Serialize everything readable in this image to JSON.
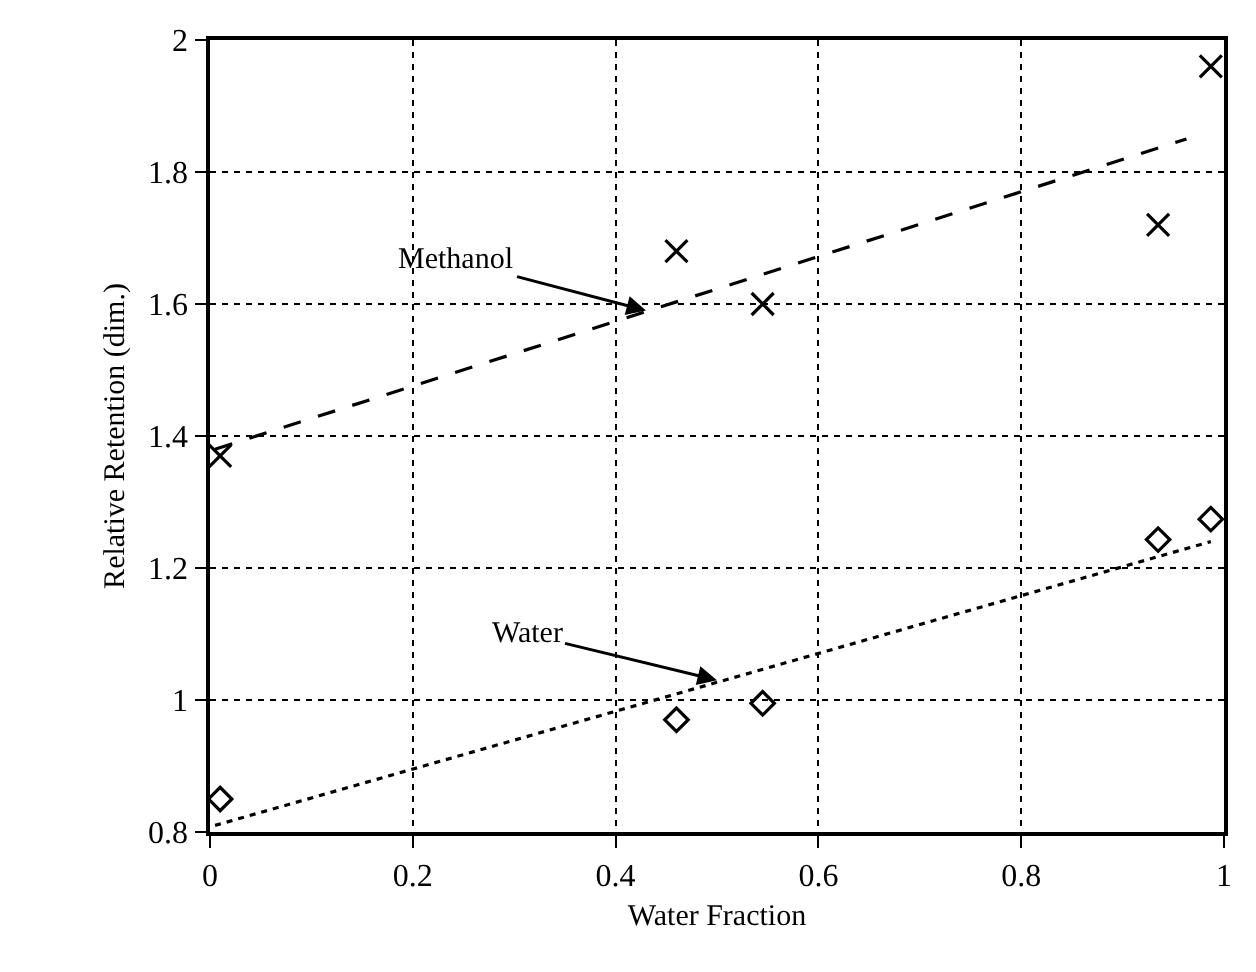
{
  "chart_data": {
    "type": "scatter",
    "xlabel": "Water Fraction",
    "ylabel": "Relative Retention (dim.)",
    "series": [
      {
        "color": "#000000",
        "marker": "cross",
        "x": [
          0.01,
          0.46,
          0.545,
          0.935,
          0.987
        ],
        "values": [
          1.37,
          1.68,
          1.6,
          1.72,
          1.96
        ]
      },
      {
        "color": "#000000",
        "marker": "diamond",
        "x": [
          0.01,
          0.46,
          0.545,
          0.935,
          0.987
        ],
        "values": [
          0.85,
          0.97,
          0.995,
          1.243,
          1.274
        ]
      },
      {
        "type": "line",
        "color": "#000000",
        "line_style": "dashed",
        "x": [
          0.005,
          0.963
        ],
        "values": [
          1.38,
          1.85
        ]
      },
      {
        "type": "line",
        "color": "#000000",
        "line_style": "dotted",
        "x": [
          0.005,
          0.987
        ],
        "values": [
          0.81,
          1.24
        ]
      }
    ],
    "annotations": [
      {
        "text": "Methanol",
        "x": 0.43,
        "y": 1.59
      },
      {
        "text": "Water",
        "x": 0.5,
        "y": 1.03
      }
    ],
    "xlim": [
      0,
      1
    ],
    "xticks": [
      0,
      0.2,
      0.4,
      0.6,
      0.8,
      1
    ],
    "ylim": [
      0.8,
      2
    ],
    "yticks": [
      0.8,
      1,
      1.2,
      1.4,
      1.6,
      1.8,
      2
    ],
    "grid": true,
    "legend": false
  }
}
